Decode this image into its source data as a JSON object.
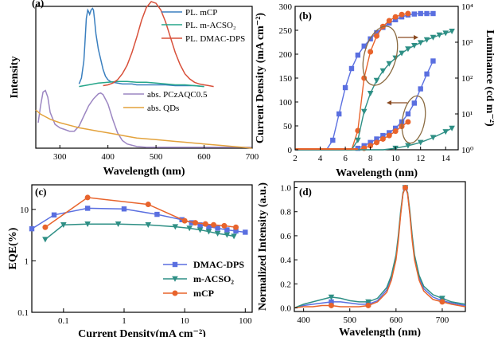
{
  "chart_data": [
    {
      "panel": "(a)",
      "type": "line",
      "xlabel": "Wavelength (nm)",
      "ylabel": "Intensity",
      "xlim": [
        250,
        700
      ],
      "xticks": [
        "300",
        "400",
        "500",
        "600",
        "700"
      ],
      "series": [
        {
          "name": "PL. mCP",
          "color": "#3a7fbf",
          "x": [
            340,
            345,
            350,
            352,
            355,
            358,
            360,
            362,
            365,
            368,
            370,
            372,
            375,
            380,
            385,
            390,
            395,
            400,
            405,
            410,
            420,
            430,
            440,
            450,
            460,
            470,
            480,
            490,
            500,
            520,
            540,
            560,
            580,
            600
          ],
          "y": [
            0.03,
            0.1,
            0.3,
            0.5,
            0.8,
            0.9,
            0.88,
            0.85,
            0.9,
            0.92,
            0.9,
            0.8,
            0.62,
            0.44,
            0.32,
            0.2,
            0.12,
            0.08,
            0.06,
            0.05,
            0.04,
            0.03,
            0.03,
            0.03,
            0.02,
            0.02,
            0.02,
            0.02,
            0.02,
            0.02,
            0.01,
            0.01,
            0.01,
            0.0
          ]
        },
        {
          "name": "PL. m-ACSO₂",
          "color": "#26a68a",
          "x": [
            340,
            360,
            380,
            400,
            420,
            440,
            460,
            480,
            500,
            520,
            540,
            560,
            580,
            600
          ],
          "y": [
            0.0,
            0.02,
            0.04,
            0.05,
            0.06,
            0.06,
            0.05,
            0.05,
            0.04,
            0.03,
            0.02,
            0.02,
            0.01,
            0.0
          ]
        },
        {
          "name": "PL. DMAC-DPS",
          "color": "#d8503a",
          "x": [
            390,
            400,
            410,
            420,
            430,
            440,
            450,
            460,
            470,
            480,
            490,
            500,
            510,
            520,
            530,
            540,
            550,
            560,
            570,
            580,
            590,
            600,
            610,
            620
          ],
          "y": [
            0.01,
            0.02,
            0.04,
            0.08,
            0.15,
            0.25,
            0.4,
            0.58,
            0.78,
            0.93,
            1.0,
            0.98,
            0.9,
            0.76,
            0.58,
            0.4,
            0.26,
            0.15,
            0.09,
            0.05,
            0.03,
            0.02,
            0.01,
            0.0
          ]
        },
        {
          "name": "abs. PCzAQC0.5",
          "color": "#9c86c2",
          "x": [
            255,
            260,
            265,
            270,
            275,
            280,
            290,
            300,
            310,
            320,
            330,
            340,
            350,
            360,
            370,
            380,
            385,
            390,
            400,
            410,
            420,
            430,
            440,
            460,
            480,
            500,
            550,
            600,
            650,
            700
          ],
          "y": [
            0.3,
            0.5,
            0.66,
            0.68,
            0.6,
            0.42,
            0.28,
            0.24,
            0.22,
            0.2,
            0.2,
            0.26,
            0.38,
            0.5,
            0.58,
            0.64,
            0.65,
            0.63,
            0.52,
            0.34,
            0.18,
            0.09,
            0.05,
            0.02,
            0.01,
            0.01,
            0.01,
            0.01,
            0.01,
            0.01
          ]
        },
        {
          "name": "abs. QDs",
          "color": "#e3a23c",
          "x": [
            250,
            260,
            270,
            280,
            290,
            300,
            320,
            340,
            360,
            380,
            400,
            420,
            440,
            460,
            480,
            500,
            520,
            540,
            560,
            580,
            600,
            620,
            640,
            660,
            680,
            700
          ],
          "y": [
            0.45,
            0.4,
            0.37,
            0.34,
            0.32,
            0.3,
            0.27,
            0.24,
            0.22,
            0.2,
            0.18,
            0.16,
            0.14,
            0.12,
            0.11,
            0.1,
            0.09,
            0.08,
            0.07,
            0.06,
            0.05,
            0.04,
            0.03,
            0.02,
            0.01,
            0.0
          ]
        }
      ]
    },
    {
      "panel": "(b)",
      "type": "line",
      "xlabel": "Wavelength (nm)",
      "ylabel": "Current Density (mA cm⁻²)",
      "y2label": "Luminance (cd m⁻²)",
      "xlim": [
        2,
        15
      ],
      "ylim": [
        0,
        300
      ],
      "y2lim": [
        1,
        10000
      ],
      "y2scale": "log",
      "xticks": [
        "2",
        "4",
        "6",
        "8",
        "10",
        "12",
        "14"
      ],
      "yticks": [
        "0",
        "50",
        "100",
        "150",
        "200",
        "250",
        "300"
      ],
      "y2ticks": [
        "10⁰",
        "10¹",
        "10²",
        "10³",
        "10⁴"
      ],
      "current_density": [
        {
          "color": "#5a6fe0",
          "marker": "square",
          "x": [
            2,
            2.5,
            3,
            3.5,
            4,
            4.5,
            5,
            5.5,
            6,
            6.5,
            7,
            7.5,
            8,
            8.5,
            9,
            9.5,
            10,
            10.5,
            11,
            11.5,
            12,
            12.5,
            13
          ],
          "y": [
            0,
            0,
            0,
            0,
            0,
            0,
            20,
            75,
            130,
            170,
            198,
            217,
            232,
            245,
            256,
            265,
            272,
            278,
            282,
            284,
            285,
            285,
            285
          ]
        },
        {
          "color": "#e8642c",
          "marker": "circle",
          "x": [
            2,
            3,
            4,
            5,
            6,
            6.5,
            7,
            7.5,
            8,
            8.5,
            9,
            9.5,
            10,
            10.5,
            11
          ],
          "y": [
            0,
            0,
            0,
            0,
            0,
            0,
            40,
            150,
            205,
            238,
            258,
            270,
            278,
            283,
            285
          ]
        },
        {
          "color": "#2e8f85",
          "marker": "triangle-down",
          "x": [
            2,
            3,
            4,
            5,
            6,
            6.5,
            7,
            7.5,
            8,
            8.5,
            9,
            9.5,
            10,
            10.5,
            11,
            11.5,
            12,
            12.5,
            13,
            13.5,
            14,
            14.5
          ],
          "y": [
            0,
            0,
            0,
            0,
            0,
            0,
            20,
            80,
            118,
            145,
            165,
            180,
            192,
            202,
            211,
            218,
            224,
            230,
            235,
            240,
            244,
            248
          ]
        }
      ],
      "luminance": [
        {
          "color": "#5a6fe0",
          "marker": "square",
          "x": [
            2,
            3,
            4,
            5,
            6,
            7,
            7.5,
            8,
            8.5,
            9,
            9.5,
            10,
            10.5,
            11,
            11.5,
            12,
            12.5,
            13
          ],
          "y": [
            1,
            1,
            1,
            1,
            1,
            1.1,
            1.3,
            1.6,
            2,
            2.5,
            3,
            4,
            6,
            10,
            20,
            50,
            130,
            300
          ]
        },
        {
          "color": "#e8642c",
          "marker": "circle",
          "x": [
            2,
            3,
            4,
            5,
            6,
            7,
            7.5,
            8,
            8.5,
            9,
            9.5,
            10,
            10.5,
            11
          ],
          "y": [
            1,
            1,
            1,
            1,
            1,
            1,
            1.1,
            1.3,
            1.6,
            2,
            2.5,
            3.3,
            4.5,
            6
          ]
        },
        {
          "color": "#2e8f85",
          "marker": "triangle-down",
          "x": [
            2,
            3,
            4,
            5,
            6,
            7,
            8,
            9,
            10,
            11,
            12,
            13,
            14,
            14.5
          ],
          "y": [
            1,
            1,
            1,
            1,
            1,
            1,
            1,
            1,
            1.1,
            1.3,
            1.6,
            2.2,
            3.2,
            4
          ]
        }
      ]
    },
    {
      "panel": "(c)",
      "type": "line",
      "xlabel": "Current Density(mA cm⁻²)",
      "ylabel": "EQE(%)",
      "xscale": "log",
      "yscale": "log",
      "xlim": [
        0.03,
        130
      ],
      "ylim": [
        0.1,
        30
      ],
      "xticks": [
        "0.1",
        "1",
        "10",
        "100"
      ],
      "yticks": [
        "0.1",
        "1",
        "10"
      ],
      "legend": "bottom-right",
      "series": [
        {
          "name": "DMAC-DPS",
          "color": "#5a6fe0",
          "marker": "square",
          "x": [
            0.03,
            0.07,
            0.25,
            1.0,
            3.5,
            9,
            13,
            18,
            25,
            35,
            50,
            70,
            100
          ],
          "y": [
            4.2,
            7.8,
            10.5,
            10.2,
            8.0,
            6.3,
            5.5,
            5.0,
            4.6,
            4.3,
            4.0,
            3.8,
            3.6
          ]
        },
        {
          "name": "m-ACSO₂",
          "color": "#2e8f85",
          "marker": "triangle-down",
          "x": [
            0.05,
            0.1,
            0.25,
            0.8,
            2.5,
            7,
            12,
            18,
            25,
            35,
            50,
            65
          ],
          "y": [
            2.6,
            5.0,
            5.2,
            5.2,
            5.0,
            4.6,
            4.3,
            4.0,
            3.7,
            3.4,
            3.2,
            3.0
          ]
        },
        {
          "name": "mCP",
          "color": "#e8642c",
          "marker": "circle",
          "x": [
            0.05,
            0.25,
            2.5,
            10,
            15,
            22,
            30,
            45,
            70
          ],
          "y": [
            4.5,
            17.0,
            12.5,
            6.0,
            5.5,
            5.2,
            5.0,
            4.8,
            4.5
          ]
        }
      ]
    },
    {
      "panel": "(d)",
      "type": "line",
      "xlabel": "Wavelength (nm)",
      "ylabel": "Normalized Intensity (a.u.)",
      "xlim": [
        380,
        750
      ],
      "ylim": [
        -0.03,
        1.05
      ],
      "xticks": [
        "400",
        "500",
        "600",
        "700"
      ],
      "yticks": [
        "0.0",
        "0.2",
        "0.4",
        "0.6",
        "0.8",
        "1.0"
      ],
      "series": [
        {
          "color": "#5a6fe0",
          "marker": "square",
          "x": [
            380,
            400,
            420,
            440,
            460,
            480,
            500,
            520,
            540,
            560,
            580,
            590,
            600,
            605,
            610,
            615,
            620,
            625,
            630,
            635,
            640,
            650,
            660,
            680,
            700,
            720,
            750
          ],
          "y": [
            0.0,
            0.02,
            0.03,
            0.04,
            0.05,
            0.05,
            0.04,
            0.03,
            0.03,
            0.06,
            0.15,
            0.25,
            0.42,
            0.58,
            0.78,
            0.95,
            1.0,
            0.95,
            0.78,
            0.58,
            0.42,
            0.25,
            0.16,
            0.09,
            0.06,
            0.04,
            0.02
          ]
        },
        {
          "color": "#2e8f85",
          "marker": "triangle-down",
          "x": [
            380,
            400,
            420,
            440,
            460,
            480,
            500,
            520,
            540,
            560,
            580,
            590,
            600,
            605,
            610,
            615,
            620,
            625,
            630,
            635,
            640,
            650,
            660,
            680,
            700,
            720,
            750
          ],
          "y": [
            0.0,
            0.03,
            0.05,
            0.07,
            0.09,
            0.08,
            0.06,
            0.05,
            0.05,
            0.08,
            0.17,
            0.27,
            0.44,
            0.6,
            0.8,
            0.96,
            1.0,
            0.96,
            0.8,
            0.6,
            0.44,
            0.27,
            0.18,
            0.11,
            0.08,
            0.05,
            0.03
          ]
        },
        {
          "color": "#e8642c",
          "marker": "circle",
          "x": [
            380,
            400,
            420,
            440,
            460,
            480,
            500,
            520,
            540,
            560,
            580,
            590,
            600,
            605,
            610,
            615,
            620,
            625,
            630,
            635,
            640,
            650,
            660,
            680,
            700,
            720,
            750
          ],
          "y": [
            0.0,
            0.01,
            0.01,
            0.02,
            0.02,
            0.01,
            0.01,
            0.01,
            0.02,
            0.05,
            0.13,
            0.23,
            0.4,
            0.56,
            0.77,
            0.95,
            1.0,
            0.95,
            0.77,
            0.56,
            0.4,
            0.23,
            0.14,
            0.07,
            0.05,
            0.03,
            0.01
          ]
        }
      ]
    }
  ]
}
